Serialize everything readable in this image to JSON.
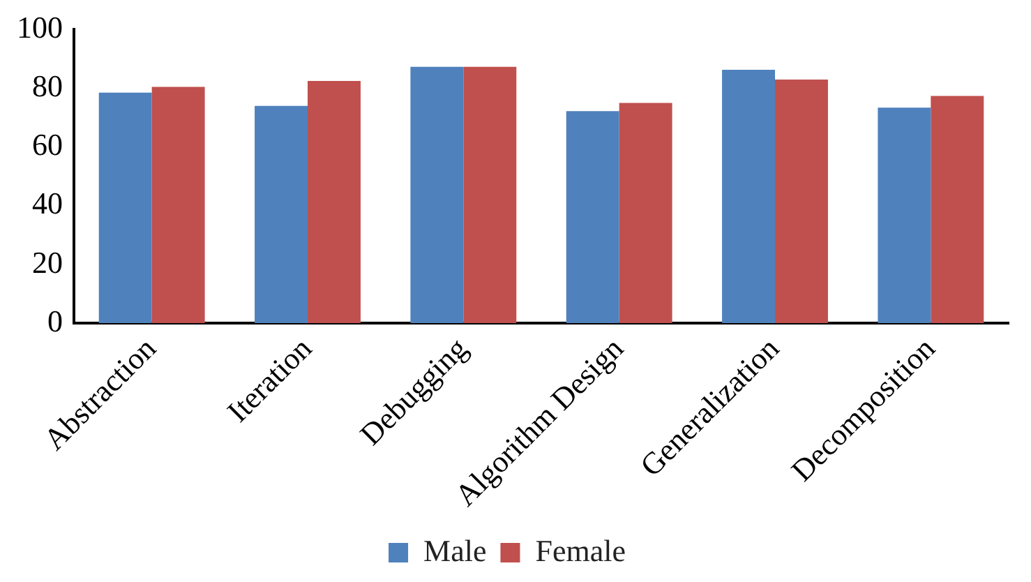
{
  "chart_data": {
    "type": "bar",
    "categories": [
      "Abstraction",
      "Iteration",
      "Debugging",
      "Algorithm Design",
      "Generalization",
      "Decomposition"
    ],
    "series": [
      {
        "name": "Male",
        "color": "#4f81bd",
        "values": [
          78.5,
          74,
          87.3,
          72.2,
          86.3,
          73.4
        ]
      },
      {
        "name": "Female",
        "color": "#c0504d",
        "values": [
          80.5,
          82.5,
          87.3,
          75,
          83,
          77.4
        ]
      }
    ],
    "ylim": [
      0,
      100
    ],
    "yticks": [
      0,
      20,
      40,
      60,
      80,
      100
    ],
    "grid": false,
    "legend": "bottom"
  }
}
